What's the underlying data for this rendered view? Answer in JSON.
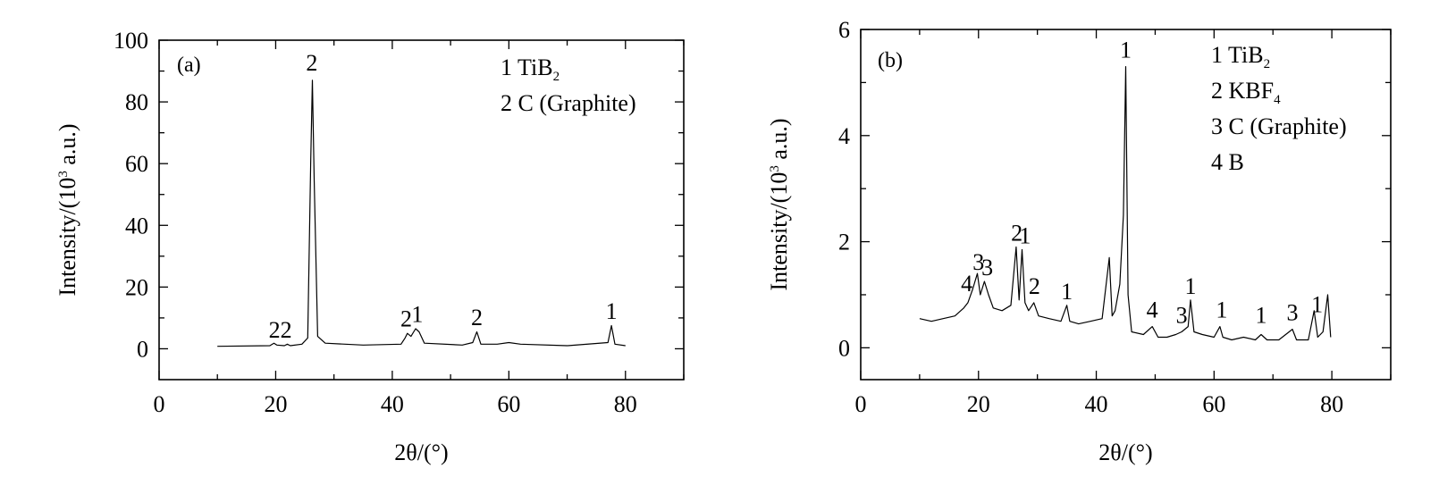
{
  "chart_data": [
    {
      "type": "line",
      "panel_label": "(a)",
      "xlabel": "2θ/(°)",
      "ylabel": "Intensity/(10³ a.u.)",
      "xlim": [
        0,
        90
      ],
      "ylim": [
        -10,
        100
      ],
      "xticks": [
        0,
        20,
        40,
        60,
        80
      ],
      "yticks": [
        0,
        20,
        40,
        60,
        80,
        100
      ],
      "legend": [
        "1 TiB₂",
        "2 C (Graphite)"
      ],
      "legend_position": "top-right",
      "grid": false,
      "series": [
        {
          "x": [
            10,
            19,
            19.7,
            20.2,
            21.5,
            22,
            22.5,
            24.5,
            25.5,
            26.0,
            26.3,
            26.6,
            27.2,
            28.5,
            35,
            41.5,
            42.2,
            42.6,
            43.2,
            44.0,
            44.6,
            45.5,
            52,
            53.8,
            54.5,
            55.2,
            58,
            60,
            62,
            70,
            77.0,
            77.6,
            78.2,
            80
          ],
          "y": [
            0.8,
            1.0,
            1.8,
            1.2,
            1.0,
            1.5,
            1.0,
            1.5,
            3.5,
            60,
            87,
            55,
            4,
            1.8,
            1.2,
            1.5,
            3.5,
            5.0,
            4.0,
            6.5,
            5.5,
            1.8,
            1.2,
            2.0,
            5.5,
            1.5,
            1.5,
            2.0,
            1.5,
            1.0,
            2.0,
            7.5,
            1.5,
            1.0
          ]
        }
      ],
      "annotations": [
        {
          "text": "2",
          "x": 19.8,
          "y": 2.5
        },
        {
          "text": "2",
          "x": 21.8,
          "y": 2.5
        },
        {
          "text": "2",
          "x": 26.2,
          "y": 89
        },
        {
          "text": "2",
          "x": 42.4,
          "y": 6
        },
        {
          "text": "1",
          "x": 44.3,
          "y": 7.5
        },
        {
          "text": "2",
          "x": 54.5,
          "y": 6.5
        },
        {
          "text": "1",
          "x": 77.6,
          "y": 8.5
        }
      ]
    },
    {
      "type": "line",
      "panel_label": "(b)",
      "xlabel": "2θ/(°)",
      "ylabel": "Intensity/(10³ a.u.)",
      "xlim": [
        0,
        90
      ],
      "ylim": [
        -0.6,
        6
      ],
      "xticks": [
        0,
        20,
        40,
        60,
        80
      ],
      "yticks": [
        0,
        2,
        4,
        6
      ],
      "legend": [
        "1 TiB₂",
        "2 KBF₄",
        "3 C (Graphite)",
        "4 B"
      ],
      "legend_position": "top-right",
      "grid": false,
      "series": [
        {
          "x": [
            10,
            12,
            14,
            16,
            17.5,
            18.2,
            19,
            19.8,
            20.3,
            21,
            21.7,
            22.5,
            24,
            25.5,
            26.4,
            26.9,
            27.4,
            27.9,
            28.5,
            29.4,
            30.2,
            32,
            34,
            35,
            35.5,
            37,
            39,
            41,
            42.2,
            42.7,
            43.2,
            44,
            44.6,
            45.0,
            45.4,
            46,
            48,
            49.5,
            50.5,
            52,
            53.5,
            54.5,
            55.6,
            56.0,
            56.6,
            58,
            60,
            61,
            61.5,
            63,
            65,
            67,
            68,
            69,
            71,
            73.3,
            74,
            76,
            77.0,
            77.6,
            78.5,
            79.3,
            79.8
          ],
          "y": [
            0.55,
            0.5,
            0.55,
            0.6,
            0.75,
            0.85,
            1.1,
            1.4,
            1.0,
            1.25,
            1.0,
            0.75,
            0.7,
            0.8,
            1.9,
            0.9,
            1.85,
            0.85,
            0.7,
            0.85,
            0.6,
            0.55,
            0.5,
            0.8,
            0.5,
            0.45,
            0.5,
            0.55,
            1.7,
            0.6,
            0.7,
            1.2,
            2.5,
            5.3,
            1.0,
            0.3,
            0.25,
            0.4,
            0.2,
            0.2,
            0.25,
            0.3,
            0.4,
            0.9,
            0.3,
            0.25,
            0.2,
            0.4,
            0.2,
            0.15,
            0.2,
            0.15,
            0.25,
            0.15,
            0.15,
            0.35,
            0.15,
            0.15,
            0.7,
            0.2,
            0.3,
            1.0,
            0.2
          ]
        }
      ],
      "annotations": [
        {
          "text": "4",
          "x": 18.0,
          "y": 1.0
        },
        {
          "text": "3",
          "x": 20.0,
          "y": 1.4
        },
        {
          "text": "3",
          "x": 21.5,
          "y": 1.3
        },
        {
          "text": "2",
          "x": 26.5,
          "y": 1.95
        },
        {
          "text": "1",
          "x": 27.9,
          "y": 1.9
        },
        {
          "text": "2",
          "x": 29.5,
          "y": 0.95
        },
        {
          "text": "1",
          "x": 35.0,
          "y": 0.85
        },
        {
          "text": "1",
          "x": 45.0,
          "y": 5.4
        },
        {
          "text": "4",
          "x": 49.5,
          "y": 0.5
        },
        {
          "text": "3",
          "x": 54.5,
          "y": 0.4
        },
        {
          "text": "1",
          "x": 56.0,
          "y": 0.95
        },
        {
          "text": "1",
          "x": 61.3,
          "y": 0.5
        },
        {
          "text": "1",
          "x": 68.0,
          "y": 0.4
        },
        {
          "text": "3",
          "x": 73.3,
          "y": 0.45
        },
        {
          "text": "1",
          "x": 77.5,
          "y": 0.6
        }
      ]
    }
  ]
}
